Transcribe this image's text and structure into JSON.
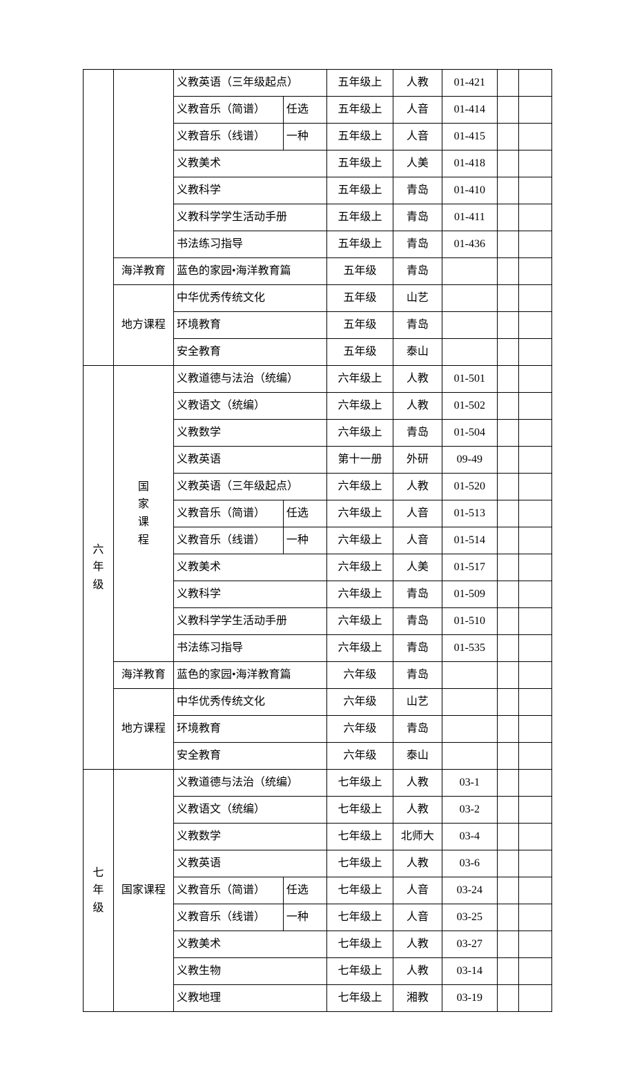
{
  "rows": [
    {
      "g": "",
      "cat": "",
      "name": "义教英语（三年级起点）",
      "nspan": 2,
      "opt": "",
      "vol": "五年级上",
      "pub": "人教",
      "code": "01-421"
    },
    {
      "g": "",
      "cat": "",
      "name": "义教音乐（简谱）",
      "nspan": 1,
      "opt": "任选",
      "optspan": 1,
      "vol": "五年级上",
      "pub": "人音",
      "code": "01-414"
    },
    {
      "g": "",
      "cat": "",
      "name": "义教音乐（线谱）",
      "nspan": 1,
      "opt": "一种",
      "optspan": 1,
      "vol": "五年级上",
      "pub": "人音",
      "code": "01-415"
    },
    {
      "g": "",
      "cat": "",
      "name": "义教美术",
      "nspan": 2,
      "opt": "",
      "vol": "五年级上",
      "pub": "人美",
      "code": "01-418"
    },
    {
      "g": "",
      "cat": "",
      "name": "义教科学",
      "nspan": 2,
      "opt": "",
      "vol": "五年级上",
      "pub": "青岛",
      "code": "01-410"
    },
    {
      "g": "",
      "cat": "",
      "name": "义教科学学生活动手册",
      "nspan": 2,
      "opt": "",
      "vol": "五年级上",
      "pub": "青岛",
      "code": "01-411"
    },
    {
      "g": "",
      "cat": "",
      "name": "书法练习指导",
      "nspan": 2,
      "opt": "",
      "vol": "五年级上",
      "pub": "青岛",
      "code": "01-436"
    },
    {
      "g": "",
      "cat": "海洋教育",
      "catspan": 1,
      "name": "蓝色的家园•海洋教育篇",
      "nspan": 2,
      "opt": "",
      "vol": "五年级",
      "pub": "青岛",
      "code": ""
    },
    {
      "g": "",
      "cat": "地方课程",
      "catspan": 3,
      "name": "中华优秀传统文化",
      "nspan": 2,
      "opt": "",
      "vol": "五年级",
      "pub": "山艺",
      "code": ""
    },
    {
      "g": "",
      "cat": "",
      "name": "环境教育",
      "nspan": 2,
      "opt": "",
      "vol": "五年级",
      "pub": "青岛",
      "code": ""
    },
    {
      "g": "",
      "cat": "",
      "name": "安全教育",
      "nspan": 2,
      "opt": "",
      "vol": "五年级",
      "pub": "泰山",
      "code": ""
    },
    {
      "g": "六年级",
      "gspan": 15,
      "cat": "国家课程",
      "catspan": 11,
      "catvert": true,
      "name": "义教道德与法治（统编）",
      "nspan": 2,
      "opt": "",
      "vol": "六年级上",
      "pub": "人教",
      "code": "01-501"
    },
    {
      "g": "",
      "cat": "",
      "name": "义教语文（统编）",
      "nspan": 2,
      "opt": "",
      "vol": "六年级上",
      "pub": "人教",
      "code": "01-502"
    },
    {
      "g": "",
      "cat": "",
      "name": "义教数学",
      "nspan": 2,
      "opt": "",
      "vol": "六年级上",
      "pub": "青岛",
      "code": "01-504"
    },
    {
      "g": "",
      "cat": "",
      "name": "义教英语",
      "nspan": 2,
      "opt": "",
      "vol": "第十一册",
      "pub": "外研",
      "code": "09-49"
    },
    {
      "g": "",
      "cat": "",
      "name": "义教英语（三年级起点）",
      "nspan": 2,
      "opt": "",
      "vol": "六年级上",
      "pub": "人教",
      "code": "01-520"
    },
    {
      "g": "",
      "cat": "",
      "name": "义教音乐（简谱）",
      "nspan": 1,
      "opt": "任选",
      "optspan": 1,
      "vol": "六年级上",
      "pub": "人音",
      "code": "01-513"
    },
    {
      "g": "",
      "cat": "",
      "name": "义教音乐（线谱）",
      "nspan": 1,
      "opt": "一种",
      "optspan": 1,
      "vol": "六年级上",
      "pub": "人音",
      "code": "01-514"
    },
    {
      "g": "",
      "cat": "",
      "name": "义教美术",
      "nspan": 2,
      "opt": "",
      "vol": "六年级上",
      "pub": "人美",
      "code": "01-517"
    },
    {
      "g": "",
      "cat": "",
      "name": "义教科学",
      "nspan": 2,
      "opt": "",
      "vol": "六年级上",
      "pub": "青岛",
      "code": "01-509"
    },
    {
      "g": "",
      "cat": "",
      "name": "义教科学学生活动手册",
      "nspan": 2,
      "opt": "",
      "vol": "六年级上",
      "pub": "青岛",
      "code": "01-510"
    },
    {
      "g": "",
      "cat": "",
      "name": "书法练习指导",
      "nspan": 2,
      "opt": "",
      "vol": "六年级上",
      "pub": "青岛",
      "code": "01-535"
    },
    {
      "g": "",
      "cat": "海洋教育",
      "catspan": 1,
      "name": "蓝色的家园•海洋教育篇",
      "nspan": 2,
      "opt": "",
      "vol": "六年级",
      "pub": "青岛",
      "code": ""
    },
    {
      "g": "",
      "cat": "地方课程",
      "catspan": 3,
      "name": "中华优秀传统文化",
      "nspan": 2,
      "opt": "",
      "vol": "六年级",
      "pub": "山艺",
      "code": ""
    },
    {
      "g": "",
      "cat": "",
      "name": "环境教育",
      "nspan": 2,
      "opt": "",
      "vol": "六年级",
      "pub": "青岛",
      "code": ""
    },
    {
      "g": "",
      "cat": "",
      "name": "安全教育",
      "nspan": 2,
      "opt": "",
      "vol": "六年级",
      "pub": "泰山",
      "code": ""
    },
    {
      "g": "七年级",
      "gspan": 9,
      "cat": "国家课程",
      "catspan": 9,
      "name": "义教道德与法治（统编）",
      "nspan": 2,
      "opt": "",
      "vol": "七年级上",
      "pub": "人教",
      "code": "03-1"
    },
    {
      "g": "",
      "cat": "",
      "name": "义教语文（统编）",
      "nspan": 2,
      "opt": "",
      "vol": "七年级上",
      "pub": "人教",
      "code": "03-2"
    },
    {
      "g": "",
      "cat": "",
      "name": "义教数学",
      "nspan": 2,
      "opt": "",
      "vol": "七年级上",
      "pub": "北师大",
      "code": "03-4"
    },
    {
      "g": "",
      "cat": "",
      "name": "义教英语",
      "nspan": 2,
      "opt": "",
      "vol": "七年级上",
      "pub": "人教",
      "code": "03-6"
    },
    {
      "g": "",
      "cat": "",
      "name": "义教音乐（简谱）",
      "nspan": 1,
      "opt": "任选",
      "optspan": 1,
      "vol": "七年级上",
      "pub": "人音",
      "code": "03-24"
    },
    {
      "g": "",
      "cat": "",
      "name": "义教音乐（线谱）",
      "nspan": 1,
      "opt": "一种",
      "optspan": 1,
      "vol": "七年级上",
      "pub": "人音",
      "code": "03-25"
    },
    {
      "g": "",
      "cat": "",
      "name": "义教美术",
      "nspan": 2,
      "opt": "",
      "vol": "七年级上",
      "pub": "人教",
      "code": "03-27"
    },
    {
      "g": "",
      "cat": "",
      "name": "义教生物",
      "nspan": 2,
      "opt": "",
      "vol": "七年级上",
      "pub": "人教",
      "code": "03-14"
    },
    {
      "g": "",
      "cat": "",
      "name": "义教地理",
      "nspan": 2,
      "opt": "",
      "vol": "七年级上",
      "pub": "湘教",
      "code": "03-19"
    }
  ],
  "firstCatSpan": 7
}
